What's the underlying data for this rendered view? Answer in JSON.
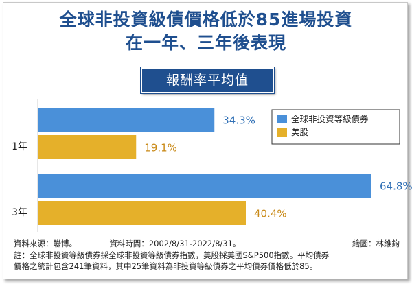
{
  "chart_data": {
    "type": "bar",
    "orientation": "horizontal",
    "title_line1": "全球非投資級債價格低於85進場投資",
    "title_line2": "在一年、三年後表現",
    "subtitle": "報酬率平均值",
    "categories": [
      "1年",
      "3年"
    ],
    "series": [
      {
        "name": "全球非投資等級債券",
        "values": [
          34.3,
          64.8
        ],
        "labels": [
          "34.3%",
          "64.8%"
        ],
        "color": "#4a90d9",
        "label_color": "#2f6fb5"
      },
      {
        "name": "美股",
        "values": [
          19.1,
          40.4
        ],
        "labels": [
          "19.1%",
          "40.4%"
        ],
        "color": "#e5b02a",
        "label_color": "#c98a18"
      }
    ],
    "xlim": [
      0,
      72
    ],
    "grid": false,
    "legend_position": "top-right"
  },
  "footer": {
    "source": "資料來源：聯博。",
    "period": "資料時間：2002/8/31-2022/8/31。",
    "credit": "繪圖：林維鈞",
    "note_line1": "註：全球非投資等級債券採全球非投資等級債券指數，美股採美國S&P500指數。平均債券",
    "note_line2": "價格之統計包含241筆資料，其中25筆資料為非投資等級債券之平均債券價格低於85。"
  }
}
